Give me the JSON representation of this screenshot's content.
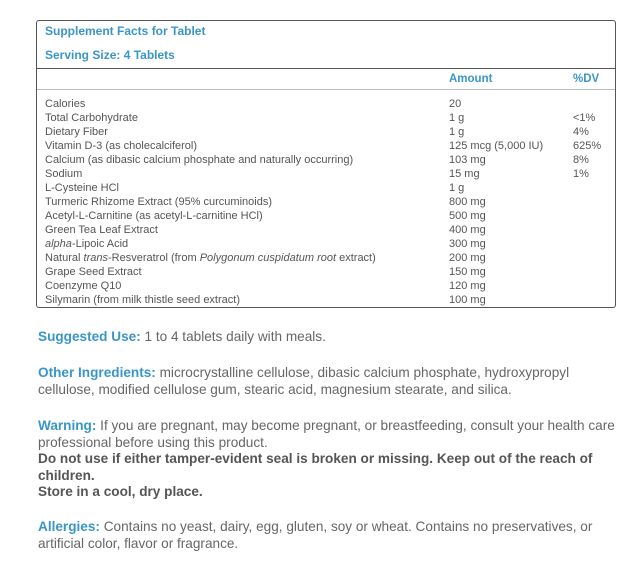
{
  "facts": {
    "title": "Supplement Facts for Tablet",
    "serving_size": "Serving Size: 4 Tablets",
    "columns": [
      "Amount",
      "%DV"
    ],
    "rows": [
      {
        "name": "Calories",
        "amount": "20"
      },
      {
        "name": "Total Carbohydrate",
        "amount": "1 g",
        "dv": "<1%"
      },
      {
        "name": "Dietary Fiber",
        "amount": "1 g",
        "dv": "4%"
      },
      {
        "name": "Vitamin D-3 (as cholecalciferol)",
        "amount": "125 mcg (5,000 IU)",
        "dv": "625%"
      },
      {
        "name": "Calcium (as dibasic calcium phosphate and naturally occurring)",
        "amount": "103 mg",
        "dv": "8%"
      },
      {
        "name": "Sodium",
        "amount": "15 mg",
        "dv": "1%"
      },
      {
        "name": "L-Cysteine HCl",
        "amount": "1 g"
      },
      {
        "name": "Turmeric Rhizome Extract (95% curcuminoids)",
        "amount": "800 mg"
      },
      {
        "name": "Acetyl-L-Carnitine (as acetyl-L-carnitine HCl)",
        "amount": "500 mg"
      },
      {
        "name": "Green Tea Leaf Extract",
        "amount": "400 mg"
      },
      {
        "name": [
          "alpha",
          "-Lipoic Acid"
        ],
        "amount": "300 mg"
      },
      {
        "name": [
          "Natural ",
          "trans",
          "-Resveratrol (from ",
          "Polygonum cuspidatum root",
          " extract)"
        ],
        "amount": "200 mg"
      },
      {
        "name": "Grape Seed Extract",
        "amount": "150 mg"
      },
      {
        "name": "Coenzyme Q10",
        "amount": "120 mg"
      },
      {
        "name": "Silymarin (from milk thistle seed extract)",
        "amount": "100 mg"
      }
    ]
  },
  "sections": [
    {
      "label": "Suggested Use:",
      "text": "1 to 4 tablets daily with meals."
    },
    {
      "label": "Other Ingredients:",
      "text": "microcrystalline cellulose, dibasic calcium phosphate, hydroxypropyl cellulose, modified cellulose gum, stearic acid, magnesium stearate, and silica."
    },
    {
      "label": "Warning:",
      "text": "If you are pregnant, may become pregnant, or breastfeeding, consult your health care professional before using this product.",
      "bold_lines": [
        "Do not use if either tamper-evident seal is broken or missing. Keep out of the reach of children.",
        "Store in a cool, dry place."
      ]
    },
    {
      "label": "Allergies:",
      "text": "Contains no yeast, dairy, egg, gluten, soy or wheat. Contains no preservatives, or artificial color, flavor or fragrance."
    }
  ]
}
